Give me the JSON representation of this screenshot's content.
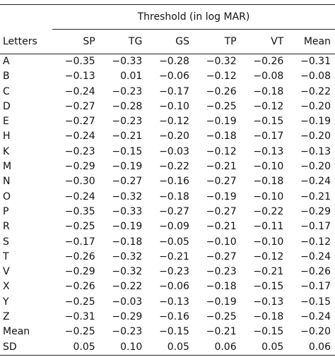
{
  "table": {
    "group_header": "Threshold (in log MAR)",
    "columns": [
      "Letters",
      "SP",
      "TG",
      "GS",
      "TP",
      "VT",
      "Mean"
    ],
    "rows": [
      [
        "A",
        "−0.35",
        "−0.33",
        "−0.28",
        "−0.32",
        "−0.26",
        "−0.31"
      ],
      [
        "B",
        "−0.13",
        "0.01",
        "−0.06",
        "−0.12",
        "−0.08",
        "−0.08"
      ],
      [
        "C",
        "−0.24",
        "−0.23",
        "−0.17",
        "−0.26",
        "−0.18",
        "−0.22"
      ],
      [
        "D",
        "−0.27",
        "−0.28",
        "−0.10",
        "−0.25",
        "−0.12",
        "−0.20"
      ],
      [
        "E",
        "−0.27",
        "−0.23",
        "−0.12",
        "−0.19",
        "−0.15",
        "−0.19"
      ],
      [
        "H",
        "−0.24",
        "−0.21",
        "−0.20",
        "−0.18",
        "−0.17",
        "−0.20"
      ],
      [
        "K",
        "−0.23",
        "−0.15",
        "−0.03",
        "−0.12",
        "−0.13",
        "−0.13"
      ],
      [
        "M",
        "−0.29",
        "−0.19",
        "−0.22",
        "−0.21",
        "−0.10",
        "−0.20"
      ],
      [
        "N",
        "−0.30",
        "−0.27",
        "−0.16",
        "−0.27",
        "−0.18",
        "−0.24"
      ],
      [
        "O",
        "−0.24",
        "−0.32",
        "−0.18",
        "−0.19",
        "−0.10",
        "−0.21"
      ],
      [
        "P",
        "−0.35",
        "−0.33",
        "−0.27",
        "−0.27",
        "−0.22",
        "−0.29"
      ],
      [
        "R",
        "−0.25",
        "−0.19",
        "−0.09",
        "−0.21",
        "−0.11",
        "−0.17"
      ],
      [
        "S",
        "−0.17",
        "−0.18",
        "−0.05",
        "−0.10",
        "−0.10",
        "−0.12"
      ],
      [
        "T",
        "−0.26",
        "−0.32",
        "−0.21",
        "−0.27",
        "−0.12",
        "−0.24"
      ],
      [
        "V",
        "−0.29",
        "−0.32",
        "−0.23",
        "−0.23",
        "−0.21",
        "−0.26"
      ],
      [
        "X",
        "−0.26",
        "−0.22",
        "−0.06",
        "−0.18",
        "−0.15",
        "−0.17"
      ],
      [
        "Y",
        "−0.25",
        "−0.03",
        "−0.13",
        "−0.19",
        "−0.13",
        "−0.15"
      ],
      [
        "Z",
        "−0.31",
        "−0.29",
        "−0.16",
        "−0.25",
        "−0.18",
        "−0.24"
      ],
      [
        "Mean",
        "−0.25",
        "−0.23",
        "−0.15",
        "−0.21",
        "−0.15",
        "−0.20"
      ],
      [
        "SD",
        "0.05",
        "0.10",
        "0.05",
        "0.06",
        "0.05",
        "0.06"
      ]
    ]
  }
}
